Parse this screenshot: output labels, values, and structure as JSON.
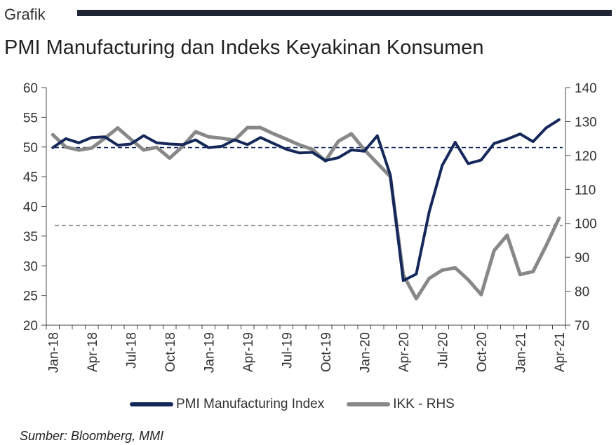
{
  "header": {
    "section_label": "Grafik",
    "title": "PMI Manufacturing dan Indeks Keyakinan Konsumen"
  },
  "source": "Sumber: Bloomberg, MMI",
  "chart_data": {
    "type": "line",
    "title": "PMI Manufacturing dan Indeks Keyakinan Konsumen",
    "x_tick_labels": [
      "Jan-18",
      "Apr-18",
      "Jul-18",
      "Oct-18",
      "Jan-19",
      "Apr-19",
      "Jul-19",
      "Oct-19",
      "Jan-20",
      "Apr-20",
      "Jul-20",
      "Oct-20",
      "Jan-21",
      "Apr-21"
    ],
    "x": [
      "Jan-18",
      "Feb-18",
      "Mar-18",
      "Apr-18",
      "May-18",
      "Jun-18",
      "Jul-18",
      "Aug-18",
      "Sep-18",
      "Oct-18",
      "Nov-18",
      "Dec-18",
      "Jan-19",
      "Feb-19",
      "Mar-19",
      "Apr-19",
      "May-19",
      "Jun-19",
      "Jul-19",
      "Aug-19",
      "Sep-19",
      "Oct-19",
      "Nov-19",
      "Dec-19",
      "Jan-20",
      "Feb-20",
      "Mar-20",
      "Apr-20",
      "May-20",
      "Jun-20",
      "Jul-20",
      "Aug-20",
      "Sep-20",
      "Oct-20",
      "Nov-20",
      "Dec-20",
      "Jan-21",
      "Feb-21",
      "Mar-21",
      "Apr-21"
    ],
    "y_left": {
      "min": 20,
      "max": 60,
      "ticks": [
        20,
        25,
        30,
        35,
        40,
        45,
        50,
        55,
        60
      ]
    },
    "y_right": {
      "min": 70,
      "max": 140,
      "ticks": [
        70,
        80,
        90,
        100,
        110,
        120,
        130,
        140
      ]
    },
    "series": [
      {
        "name": "PMI Manufacturing Index",
        "axis": "left",
        "color": "#14285a",
        "values": [
          49.9,
          51.4,
          50.7,
          51.6,
          51.7,
          50.3,
          50.5,
          51.9,
          50.7,
          50.5,
          50.4,
          51.2,
          49.9,
          50.1,
          51.2,
          50.4,
          51.6,
          50.6,
          49.6,
          49.0,
          49.1,
          47.7,
          48.2,
          49.5,
          49.3,
          51.9,
          45.3,
          27.5,
          28.6,
          39.1,
          46.9,
          50.8,
          47.2,
          47.8,
          50.6,
          51.3,
          52.2,
          50.9,
          53.2,
          54.6
        ]
      },
      {
        "name": "IKK - RHS",
        "axis": "right",
        "color": "#888888",
        "values": [
          126.1,
          122.5,
          121.6,
          122.2,
          125.1,
          128.1,
          124.8,
          121.6,
          122.4,
          119.2,
          122.7,
          127.0,
          125.5,
          125.1,
          124.5,
          128.2,
          128.2,
          126.4,
          124.8,
          123.1,
          121.8,
          118.4,
          124.2,
          126.4,
          121.7,
          117.7,
          113.8,
          84.8,
          77.8,
          83.8,
          86.2,
          86.9,
          83.4,
          79.0,
          92.0,
          96.5,
          84.9,
          85.8,
          93.4,
          101.5
        ]
      }
    ],
    "reference_lines": [
      {
        "axis": "left",
        "value": 49.9,
        "color": "#14285a",
        "style": "dashed"
      },
      {
        "axis": "right",
        "value": 99.4,
        "color": "#888888",
        "style": "dashed"
      }
    ],
    "legend": [
      "PMI Manufacturing Index",
      "IKK - RHS"
    ],
    "legend_position": "bottom",
    "grid": false
  }
}
